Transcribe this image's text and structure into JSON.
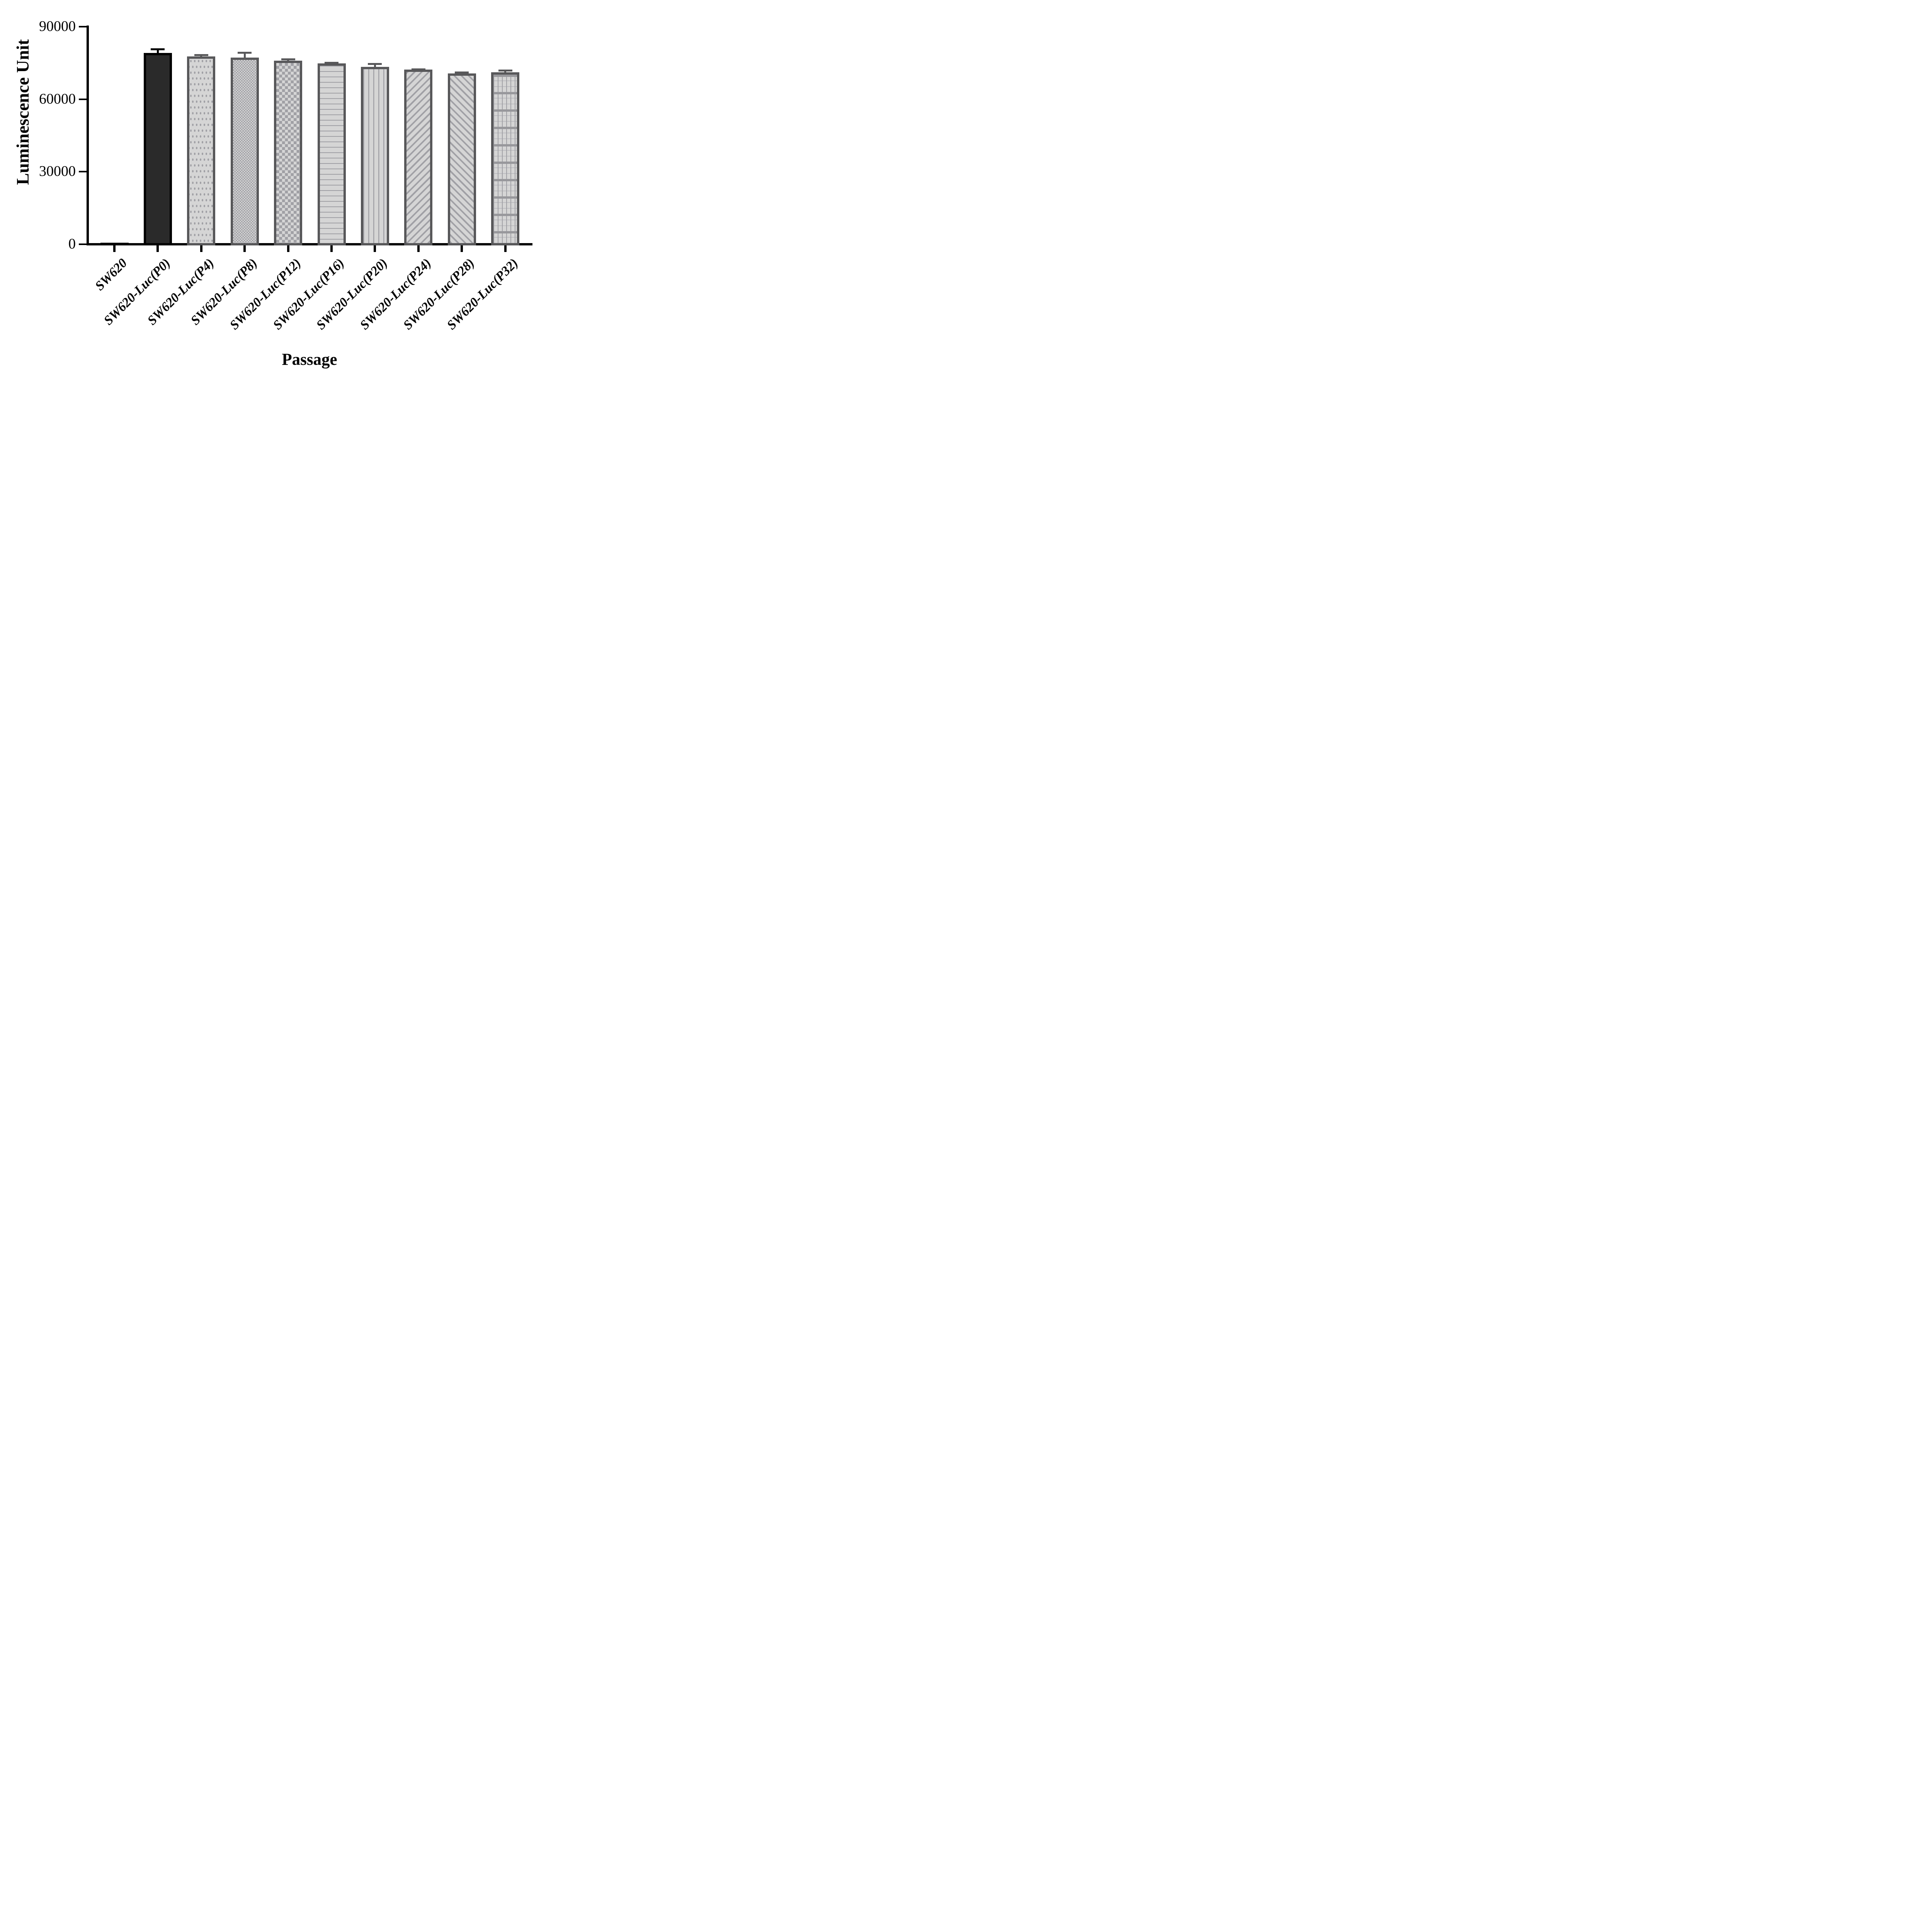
{
  "chart_data": {
    "type": "bar",
    "title": "",
    "xlabel": "Passage",
    "ylabel": "Luminescence Unit",
    "ylim": [
      0,
      90000
    ],
    "ytick_values": [
      90000,
      60000,
      30000,
      0
    ],
    "ytick_labels": [
      "90000",
      "60000",
      "30000",
      "0"
    ],
    "grid": false,
    "legend": false,
    "categories": [
      "SW620",
      "SW620-Luc(P0)",
      "SW620-Luc(P4)",
      "SW620-Luc(P8)",
      "SW620-Luc(P12)",
      "SW620-Luc(P16)",
      "SW620-Luc(P20)",
      "SW620-Luc(P24)",
      "SW620-Luc(P28)",
      "SW620-Luc(P32)"
    ],
    "values": [
      600,
      79200,
      77700,
      77200,
      76000,
      74800,
      73400,
      72200,
      70700,
      71200
    ],
    "errors_plus": [
      null,
      1800,
      1000,
      2400,
      850,
      650,
      1600,
      600,
      750,
      1100
    ],
    "bar_patterns": [
      "solid-black",
      "solid-dark",
      "dots",
      "check-small",
      "check-large",
      "hlines",
      "vlines",
      "diag-up",
      "diag-down",
      "grid"
    ]
  },
  "style": {
    "background": "#ffffff",
    "axis_color": "#000000",
    "bar_fill": "#d5d5d5",
    "pattern_color": "#a0a0a5",
    "pattern_light": "#bcbcc0",
    "pattern_heavy": "#98989c",
    "bar_border": "#58585a",
    "dark_bar_fill": "#2a2a2a",
    "black_bar": "#000000"
  }
}
